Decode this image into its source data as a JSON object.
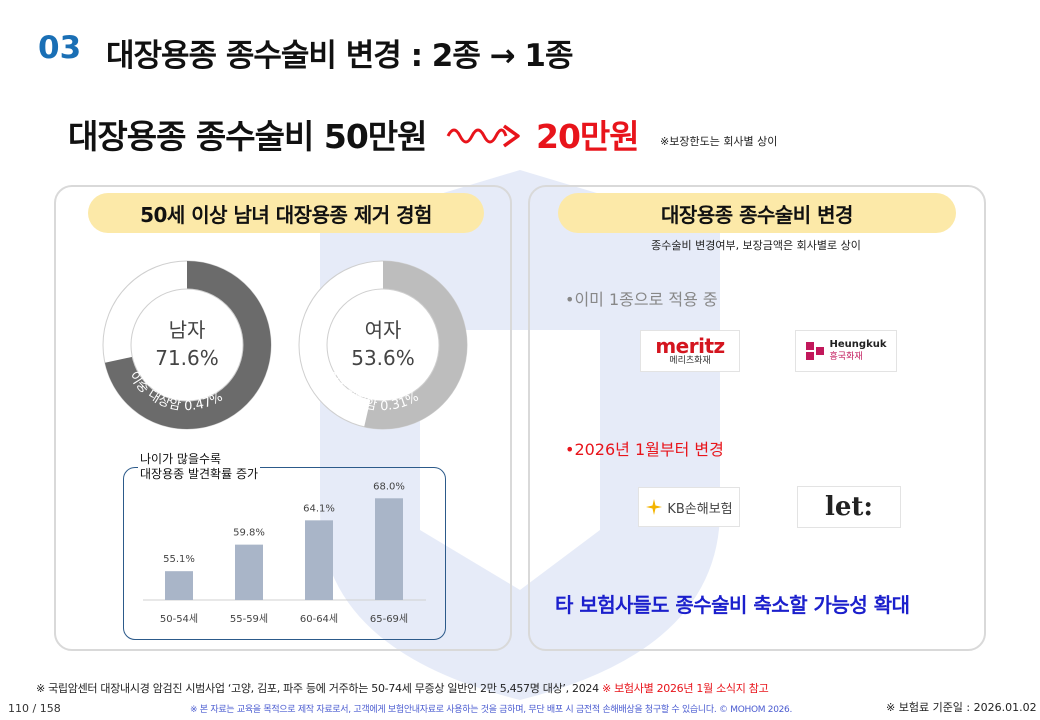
{
  "header": {
    "section_number": "03",
    "title": "대장용종 종수술비 변경 : 2종 → 1종"
  },
  "subtitle": {
    "left": "대장용종 종수술비 50만원",
    "right": "20만원",
    "note": "※보장한도는 회사별 상이"
  },
  "left_panel": {
    "pill": "50세 이상 남녀 대장용종 제거 경험",
    "donuts": [
      {
        "label": "남자",
        "value_text": "71.6%",
        "value": 71.6,
        "arc_text": "이중 대장암 0.47%",
        "color": "#6b6b6b"
      },
      {
        "label": "여자",
        "value_text": "53.6%",
        "value": 53.6,
        "arc_text": "이중 대장암 0.31%",
        "color": "#bdbdbd"
      }
    ],
    "chart_caption_line1": "나이가 많을수록",
    "chart_caption_line2": "대장용종 발견확률 증가"
  },
  "chart_data": {
    "type": "bar",
    "categories": [
      "50-54세",
      "55-59세",
      "60-64세",
      "65-69세"
    ],
    "values": [
      55.1,
      59.8,
      64.1,
      68.0
    ],
    "value_labels": [
      "55.1%",
      "59.8%",
      "64.1%",
      "68.0%"
    ],
    "title": "",
    "xlabel": "",
    "ylabel": "",
    "ylim": [
      50,
      70
    ],
    "grid": false,
    "bar_color": "#a9b5c8"
  },
  "right_panel": {
    "pill": "대장용종 종수술비 변경",
    "note": "종수술비 변경여부, 보장금액은 회사별로 상이",
    "bullet_applied": "•이미 1종으로 적용 중",
    "bullet_change": "•2026년 1월부터 변경",
    "logos": {
      "meritz": {
        "name": "meritz",
        "sub": "메리츠화재"
      },
      "heungkuk": {
        "name": "Heungkuk",
        "sub": "흥국화재"
      },
      "kb": {
        "name": "KB손해보험"
      },
      "let": {
        "name": "let:"
      }
    },
    "conclusion": "타 보험사들도 종수술비 축소할 가능성 확대"
  },
  "footer": {
    "source": "※ 국립암센터 대장내시경 암검진 시범사업 ‘고양, 김포, 파주 등에 거주하는 50-74세 무증상 일반인 2만 5,457명 대상’, 2024",
    "source_red": " ※ 보험사별 2026년 1월 소식지 참고",
    "disclaimer": "※ 본 자료는 교육을 목적으로 제작 자료로서, 고객에게 보험안내자료로 사용하는 것을 금하며, 무단 배포 시 금전적 손해배상을 청구할 수 있습니다. © MOHOM 2026.",
    "page": "110 / 158",
    "base_date": "※ 보험료 기준일 : 2026.01.02"
  },
  "colors": {
    "accent_blue": "#1a6fb5",
    "accent_red": "#e8141b",
    "pill_yellow": "#fce9a8",
    "conclusion_blue": "#1b1fcc"
  }
}
